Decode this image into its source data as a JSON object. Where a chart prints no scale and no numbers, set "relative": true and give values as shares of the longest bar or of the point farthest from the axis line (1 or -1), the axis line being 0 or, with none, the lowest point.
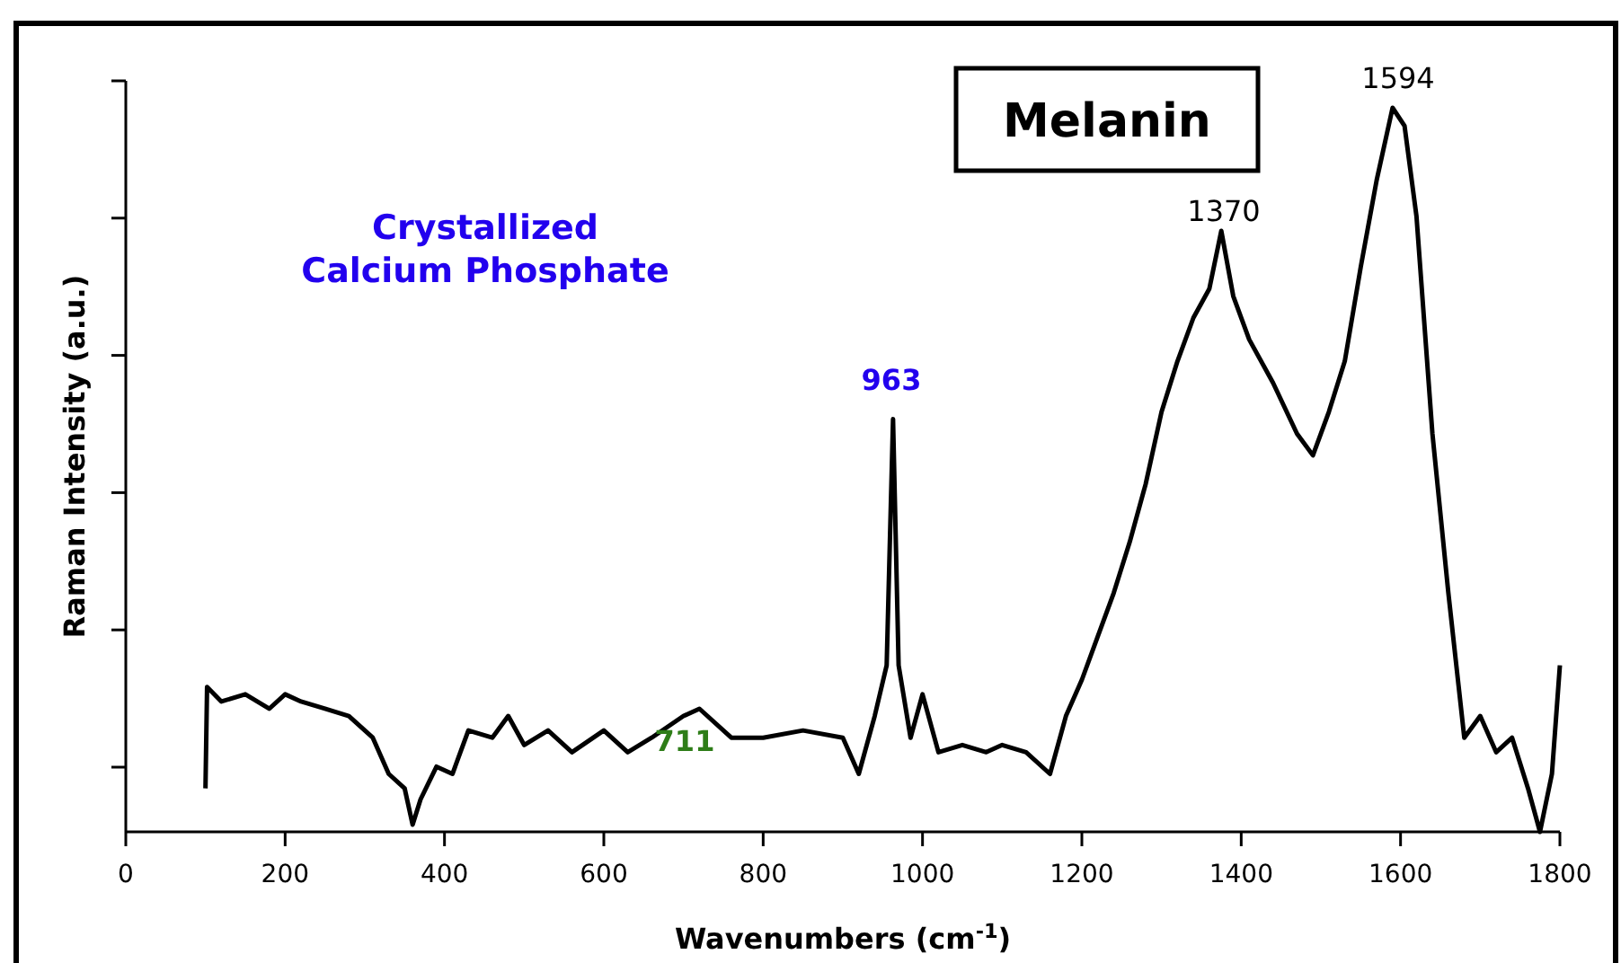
{
  "chart_data": {
    "type": "line",
    "relative": true,
    "title": "Melanin",
    "xlabel": "Wavenumbers (cm$^{-1}$)",
    "ylabel": "Raman Intensity (a.u.)",
    "xlim": [
      0,
      1800
    ],
    "xticks": [
      0,
      200,
      400,
      600,
      800,
      1000,
      1200,
      1400,
      1600,
      1800
    ],
    "line_style": "solid",
    "annotations": [
      "Crystallized\nCalcium Phosphate",
      "963",
      "1370",
      "1594",
      "711"
    ],
    "series": [
      {
        "color": "#000000",
        "x": [
          100,
          102,
          120,
          150,
          180,
          200,
          220,
          250,
          280,
          310,
          330,
          350,
          360,
          370,
          390,
          410,
          430,
          460,
          480,
          500,
          530,
          560,
          600,
          630,
          660,
          700,
          720,
          760,
          800,
          850,
          900,
          920,
          940,
          955,
          963,
          970,
          985,
          1000,
          1020,
          1050,
          1080,
          1100,
          1130,
          1160,
          1180,
          1200,
          1220,
          1240,
          1260,
          1280,
          1300,
          1320,
          1340,
          1360,
          1375,
          1390,
          1410,
          1440,
          1470,
          1490,
          1510,
          1530,
          1550,
          1570,
          1590,
          1605,
          1620,
          1640,
          1660,
          1680,
          1700,
          1720,
          1740,
          1760,
          1775,
          1790,
          1800
        ],
        "values": [
          0.06,
          0.2,
          0.18,
          0.19,
          0.17,
          0.19,
          0.18,
          0.17,
          0.16,
          0.13,
          0.08,
          0.06,
          0.01,
          0.045,
          0.09,
          0.08,
          0.14,
          0.13,
          0.16,
          0.12,
          0.14,
          0.11,
          0.14,
          0.11,
          0.13,
          0.16,
          0.17,
          0.13,
          0.13,
          0.14,
          0.13,
          0.08,
          0.16,
          0.23,
          0.57,
          0.23,
          0.13,
          0.19,
          0.11,
          0.12,
          0.11,
          0.12,
          0.11,
          0.08,
          0.16,
          0.21,
          0.27,
          0.33,
          0.4,
          0.48,
          0.58,
          0.65,
          0.71,
          0.75,
          0.83,
          0.74,
          0.68,
          0.62,
          0.55,
          0.52,
          0.58,
          0.65,
          0.78,
          0.9,
          1,
          0.975,
          0.85,
          0.55,
          0.33,
          0.13,
          0.16,
          0.11,
          0.13,
          0.06,
          0,
          0.08,
          0.23
        ]
      }
    ]
  }
}
